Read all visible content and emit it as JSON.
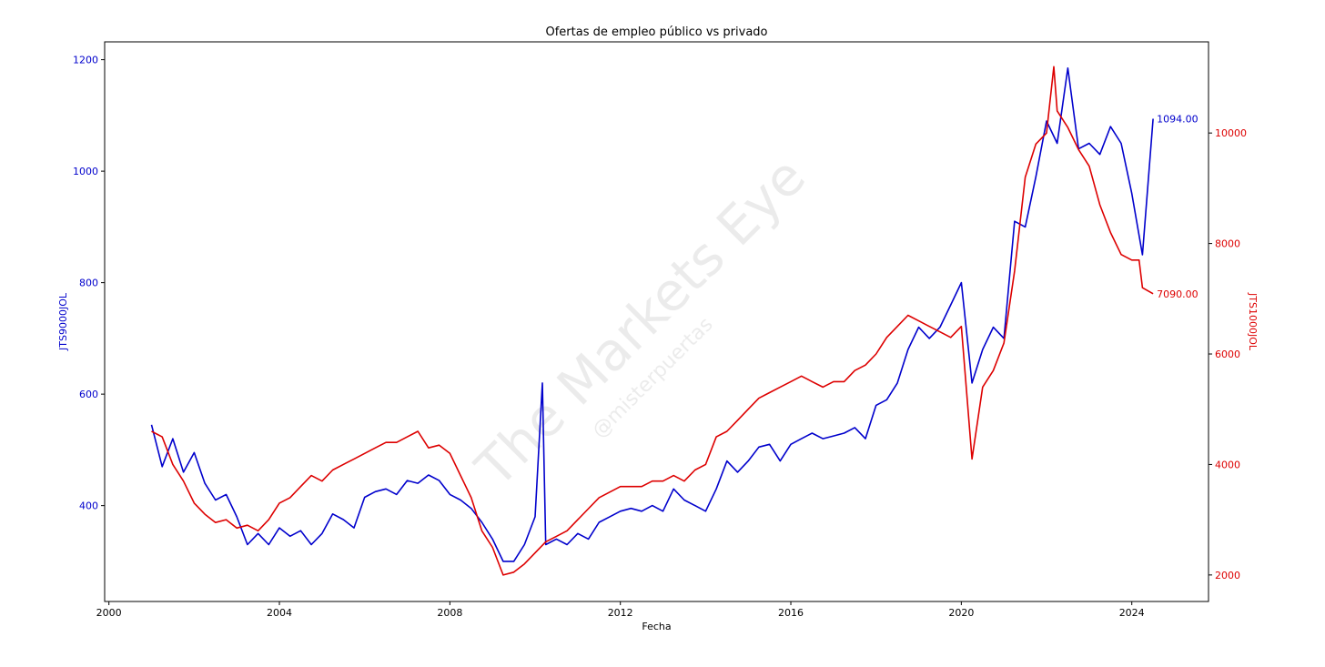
{
  "chart_data": {
    "type": "line",
    "title": "Ofertas de empleo público vs privado",
    "xlabel": "Fecha",
    "ylabel_left": "JTS9000JOL",
    "ylabel_right": "JTS1000JOL",
    "x_ticks": [
      "2000",
      "2004",
      "2008",
      "2012",
      "2016",
      "2020",
      "2024"
    ],
    "y_left_ticks": [
      "400",
      "600",
      "800",
      "1000",
      "1200"
    ],
    "y_right_ticks": [
      "2000",
      "4000",
      "6000",
      "8000",
      "10000"
    ],
    "xlim": [
      1999.9,
      2025.8
    ],
    "ylim_left": [
      228,
      1232
    ],
    "ylim_right": [
      1520,
      11650
    ],
    "grid": false,
    "watermark": "The Markets Eye",
    "watermark_handle": "@misterpuertas",
    "colors": {
      "left": "#0000cc",
      "right": "#dd0000"
    },
    "series": [
      {
        "name": "JTS9000JOL",
        "axis": "left",
        "end_label": "1094.00",
        "x": [
          2001.0,
          2001.25,
          2001.5,
          2001.75,
          2002.0,
          2002.25,
          2002.5,
          2002.75,
          2003.0,
          2003.25,
          2003.5,
          2003.75,
          2004.0,
          2004.25,
          2004.5,
          2004.75,
          2005.0,
          2005.25,
          2005.5,
          2005.75,
          2006.0,
          2006.25,
          2006.5,
          2006.75,
          2007.0,
          2007.25,
          2007.5,
          2007.75,
          2008.0,
          2008.25,
          2008.5,
          2008.75,
          2009.0,
          2009.25,
          2009.5,
          2009.75,
          2010.0,
          2010.17,
          2010.25,
          2010.5,
          2010.75,
          2011.0,
          2011.25,
          2011.5,
          2011.75,
          2012.0,
          2012.25,
          2012.5,
          2012.75,
          2013.0,
          2013.25,
          2013.5,
          2013.75,
          2014.0,
          2014.25,
          2014.5,
          2014.75,
          2015.0,
          2015.25,
          2015.5,
          2015.75,
          2016.0,
          2016.25,
          2016.5,
          2016.75,
          2017.0,
          2017.25,
          2017.5,
          2017.75,
          2018.0,
          2018.25,
          2018.5,
          2018.75,
          2019.0,
          2019.25,
          2019.5,
          2019.75,
          2020.0,
          2020.25,
          2020.5,
          2020.75,
          2021.0,
          2021.25,
          2021.5,
          2021.75,
          2022.0,
          2022.25,
          2022.5,
          2022.75,
          2023.0,
          2023.25,
          2023.5,
          2023.75,
          2024.0,
          2024.25,
          2024.5
        ],
        "y": [
          545,
          470,
          520,
          460,
          495,
          440,
          410,
          420,
          380,
          330,
          350,
          330,
          360,
          345,
          355,
          330,
          350,
          385,
          375,
          360,
          415,
          425,
          430,
          420,
          445,
          440,
          455,
          445,
          420,
          410,
          395,
          370,
          340,
          300,
          300,
          330,
          380,
          620,
          330,
          340,
          330,
          350,
          340,
          370,
          380,
          390,
          395,
          390,
          400,
          390,
          430,
          410,
          400,
          390,
          430,
          480,
          460,
          480,
          505,
          510,
          480,
          510,
          520,
          530,
          520,
          525,
          530,
          540,
          520,
          580,
          590,
          620,
          680,
          720,
          700,
          720,
          760,
          800,
          620,
          680,
          720,
          700,
          910,
          900,
          990,
          1090,
          1050,
          1185,
          1040,
          1050,
          1030,
          1080,
          1050,
          960,
          850,
          1094
        ]
      },
      {
        "name": "JTS1000JOL",
        "axis": "right",
        "end_label": "7090.00",
        "x": [
          2001.0,
          2001.25,
          2001.5,
          2001.75,
          2002.0,
          2002.25,
          2002.5,
          2002.75,
          2003.0,
          2003.25,
          2003.5,
          2003.75,
          2004.0,
          2004.25,
          2004.5,
          2004.75,
          2005.0,
          2005.25,
          2005.5,
          2005.75,
          2006.0,
          2006.25,
          2006.5,
          2006.75,
          2007.0,
          2007.25,
          2007.5,
          2007.75,
          2008.0,
          2008.25,
          2008.5,
          2008.75,
          2009.0,
          2009.25,
          2009.5,
          2009.75,
          2010.0,
          2010.25,
          2010.5,
          2010.75,
          2011.0,
          2011.25,
          2011.5,
          2011.75,
          2012.0,
          2012.25,
          2012.5,
          2012.75,
          2013.0,
          2013.25,
          2013.5,
          2013.75,
          2014.0,
          2014.25,
          2014.5,
          2014.75,
          2015.0,
          2015.25,
          2015.5,
          2015.75,
          2016.0,
          2016.25,
          2016.5,
          2016.75,
          2017.0,
          2017.25,
          2017.5,
          2017.75,
          2018.0,
          2018.25,
          2018.5,
          2018.75,
          2019.0,
          2019.25,
          2019.5,
          2019.75,
          2020.0,
          2020.25,
          2020.5,
          2020.75,
          2021.0,
          2021.25,
          2021.5,
          2021.75,
          2022.0,
          2022.17,
          2022.25,
          2022.5,
          2022.75,
          2023.0,
          2023.25,
          2023.5,
          2023.75,
          2024.0,
          2024.17,
          2024.25,
          2024.5
        ],
        "y": [
          4600,
          4500,
          4000,
          3700,
          3300,
          3100,
          2950,
          3000,
          2850,
          2900,
          2800,
          3000,
          3300,
          3400,
          3600,
          3800,
          3700,
          3900,
          4000,
          4100,
          4200,
          4300,
          4400,
          4400,
          4500,
          4600,
          4300,
          4350,
          4200,
          3800,
          3400,
          2800,
          2500,
          2000,
          2050,
          2200,
          2400,
          2600,
          2700,
          2800,
          3000,
          3200,
          3400,
          3500,
          3600,
          3600,
          3600,
          3700,
          3700,
          3800,
          3700,
          3900,
          4000,
          4500,
          4600,
          4800,
          5000,
          5200,
          5300,
          5400,
          5500,
          5600,
          5500,
          5400,
          5500,
          5500,
          5700,
          5800,
          6000,
          6300,
          6500,
          6700,
          6600,
          6500,
          6400,
          6300,
          6500,
          4100,
          5400,
          5700,
          6200,
          7500,
          9200,
          9800,
          10000,
          11200,
          10400,
          10100,
          9700,
          9400,
          8700,
          8200,
          7800,
          7700,
          7700,
          7200,
          7090
        ]
      }
    ]
  }
}
